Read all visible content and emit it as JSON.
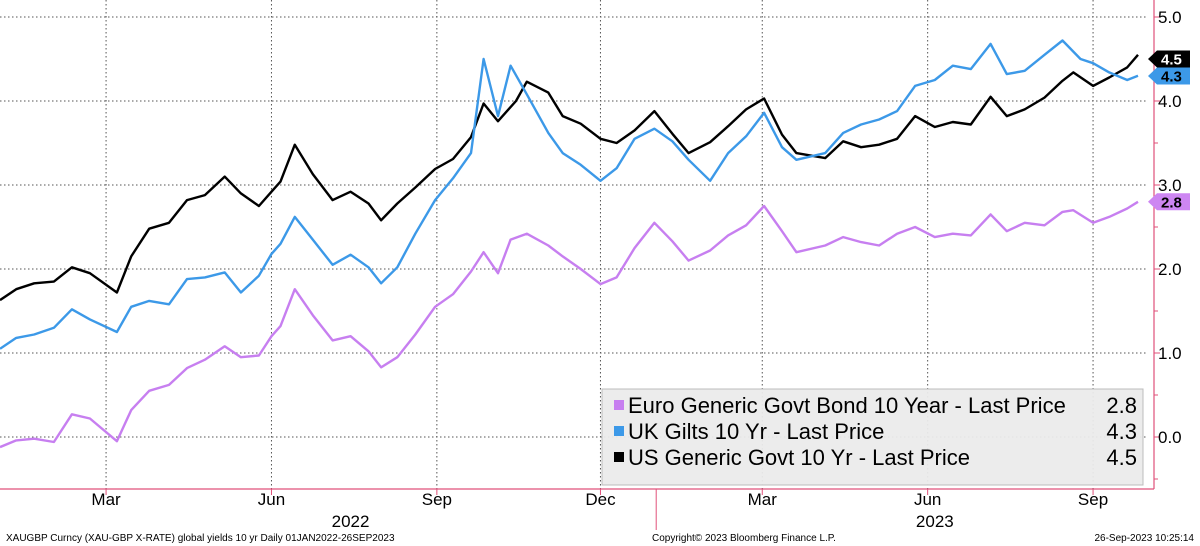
{
  "chart_data": {
    "type": "line",
    "xlim": [
      "2022-01-01",
      "2023-09-26"
    ],
    "ylim": [
      -0.6,
      5.0
    ],
    "y_ticks": [
      "5.0",
      "4.0",
      "3.0",
      "2.0",
      "1.0",
      "0.0"
    ],
    "x_ticks": [
      {
        "label": "Mar",
        "date": "2022-03-01"
      },
      {
        "label": "Jun",
        "date": "2022-06-01"
      },
      {
        "label": "Sep",
        "date": "2022-09-01"
      },
      {
        "label": "Dec",
        "date": "2022-12-01"
      },
      {
        "label": "Mar",
        "date": "2023-03-01"
      },
      {
        "label": "Jun",
        "date": "2023-06-01"
      },
      {
        "label": "Sep",
        "date": "2023-09-01"
      }
    ],
    "year_labels": [
      {
        "label": "2022",
        "date": "2022-07-15"
      },
      {
        "label": "2023",
        "date": "2023-06-05"
      }
    ],
    "grid": true,
    "legend_position": "bottom-right",
    "series": [
      {
        "name": "US Generic Govt 10 Yr - Last Price",
        "legend_value": "4.5",
        "badge": "4.5",
        "color": "#000000",
        "badge_color": "#000000",
        "badge_text_color": "#ffffff",
        "points": [
          [
            "2022-01-01",
            1.63
          ],
          [
            "2022-01-10",
            1.76
          ],
          [
            "2022-01-20",
            1.83
          ],
          [
            "2022-01-31",
            1.85
          ],
          [
            "2022-02-10",
            2.02
          ],
          [
            "2022-02-20",
            1.95
          ],
          [
            "2022-03-07",
            1.72
          ],
          [
            "2022-03-15",
            2.15
          ],
          [
            "2022-03-25",
            2.48
          ],
          [
            "2022-04-05",
            2.55
          ],
          [
            "2022-04-15",
            2.82
          ],
          [
            "2022-04-25",
            2.88
          ],
          [
            "2022-05-06",
            3.1
          ],
          [
            "2022-05-15",
            2.9
          ],
          [
            "2022-05-25",
            2.75
          ],
          [
            "2022-06-01",
            2.92
          ],
          [
            "2022-06-06",
            3.04
          ],
          [
            "2022-06-14",
            3.48
          ],
          [
            "2022-06-24",
            3.13
          ],
          [
            "2022-07-05",
            2.82
          ],
          [
            "2022-07-15",
            2.92
          ],
          [
            "2022-07-25",
            2.78
          ],
          [
            "2022-08-01",
            2.58
          ],
          [
            "2022-08-10",
            2.78
          ],
          [
            "2022-08-20",
            2.97
          ],
          [
            "2022-08-31",
            3.19
          ],
          [
            "2022-09-10",
            3.31
          ],
          [
            "2022-09-20",
            3.57
          ],
          [
            "2022-09-27",
            3.97
          ],
          [
            "2022-10-05",
            3.76
          ],
          [
            "2022-10-15",
            4.0
          ],
          [
            "2022-10-21",
            4.23
          ],
          [
            "2022-11-02",
            4.1
          ],
          [
            "2022-11-10",
            3.82
          ],
          [
            "2022-11-20",
            3.73
          ],
          [
            "2022-12-01",
            3.55
          ],
          [
            "2022-12-10",
            3.5
          ],
          [
            "2022-12-20",
            3.65
          ],
          [
            "2022-12-31",
            3.88
          ],
          [
            "2023-01-10",
            3.61
          ],
          [
            "2023-01-19",
            3.38
          ],
          [
            "2023-01-31",
            3.51
          ],
          [
            "2023-02-10",
            3.7
          ],
          [
            "2023-02-20",
            3.9
          ],
          [
            "2023-03-02",
            4.03
          ],
          [
            "2023-03-12",
            3.6
          ],
          [
            "2023-03-20",
            3.38
          ],
          [
            "2023-04-05",
            3.32
          ],
          [
            "2023-04-15",
            3.52
          ],
          [
            "2023-04-25",
            3.45
          ],
          [
            "2023-05-05",
            3.48
          ],
          [
            "2023-05-15",
            3.55
          ],
          [
            "2023-05-25",
            3.82
          ],
          [
            "2023-06-05",
            3.69
          ],
          [
            "2023-06-15",
            3.75
          ],
          [
            "2023-06-25",
            3.72
          ],
          [
            "2023-07-06",
            4.05
          ],
          [
            "2023-07-15",
            3.82
          ],
          [
            "2023-07-25",
            3.9
          ],
          [
            "2023-08-05",
            4.04
          ],
          [
            "2023-08-15",
            4.24
          ],
          [
            "2023-08-21",
            4.34
          ],
          [
            "2023-09-01",
            4.18
          ],
          [
            "2023-09-10",
            4.28
          ],
          [
            "2023-09-20",
            4.4
          ],
          [
            "2023-09-26",
            4.55
          ]
        ]
      },
      {
        "name": "UK Gilts 10 Yr - Last Price",
        "legend_value": "4.3",
        "badge": "4.3",
        "color": "#3c99e8",
        "badge_color": "#3c99e8",
        "badge_text_color": "#000000",
        "points": [
          [
            "2022-01-01",
            1.05
          ],
          [
            "2022-01-10",
            1.18
          ],
          [
            "2022-01-20",
            1.22
          ],
          [
            "2022-01-31",
            1.3
          ],
          [
            "2022-02-10",
            1.52
          ],
          [
            "2022-02-20",
            1.4
          ],
          [
            "2022-03-07",
            1.25
          ],
          [
            "2022-03-15",
            1.55
          ],
          [
            "2022-03-25",
            1.62
          ],
          [
            "2022-04-05",
            1.58
          ],
          [
            "2022-04-15",
            1.88
          ],
          [
            "2022-04-25",
            1.9
          ],
          [
            "2022-05-06",
            1.96
          ],
          [
            "2022-05-15",
            1.72
          ],
          [
            "2022-05-25",
            1.92
          ],
          [
            "2022-06-01",
            2.18
          ],
          [
            "2022-06-06",
            2.3
          ],
          [
            "2022-06-14",
            2.62
          ],
          [
            "2022-06-24",
            2.35
          ],
          [
            "2022-07-05",
            2.05
          ],
          [
            "2022-07-15",
            2.17
          ],
          [
            "2022-07-25",
            2.02
          ],
          [
            "2022-08-01",
            1.83
          ],
          [
            "2022-08-10",
            2.02
          ],
          [
            "2022-08-20",
            2.42
          ],
          [
            "2022-08-31",
            2.82
          ],
          [
            "2022-09-10",
            3.08
          ],
          [
            "2022-09-20",
            3.38
          ],
          [
            "2022-09-27",
            4.5
          ],
          [
            "2022-10-05",
            3.82
          ],
          [
            "2022-10-12",
            4.42
          ],
          [
            "2022-10-21",
            4.08
          ],
          [
            "2022-11-02",
            3.62
          ],
          [
            "2022-11-10",
            3.38
          ],
          [
            "2022-11-20",
            3.24
          ],
          [
            "2022-12-01",
            3.05
          ],
          [
            "2022-12-10",
            3.2
          ],
          [
            "2022-12-20",
            3.55
          ],
          [
            "2022-12-31",
            3.67
          ],
          [
            "2023-01-10",
            3.52
          ],
          [
            "2023-01-19",
            3.3
          ],
          [
            "2023-01-31",
            3.05
          ],
          [
            "2023-02-10",
            3.38
          ],
          [
            "2023-02-20",
            3.58
          ],
          [
            "2023-03-02",
            3.86
          ],
          [
            "2023-03-12",
            3.45
          ],
          [
            "2023-03-20",
            3.3
          ],
          [
            "2023-04-05",
            3.38
          ],
          [
            "2023-04-15",
            3.62
          ],
          [
            "2023-04-25",
            3.72
          ],
          [
            "2023-05-05",
            3.78
          ],
          [
            "2023-05-15",
            3.88
          ],
          [
            "2023-05-25",
            4.18
          ],
          [
            "2023-06-05",
            4.25
          ],
          [
            "2023-06-15",
            4.42
          ],
          [
            "2023-06-25",
            4.38
          ],
          [
            "2023-07-06",
            4.68
          ],
          [
            "2023-07-15",
            4.32
          ],
          [
            "2023-07-25",
            4.36
          ],
          [
            "2023-08-05",
            4.55
          ],
          [
            "2023-08-15",
            4.72
          ],
          [
            "2023-08-25",
            4.5
          ],
          [
            "2023-09-01",
            4.45
          ],
          [
            "2023-09-10",
            4.34
          ],
          [
            "2023-09-20",
            4.25
          ],
          [
            "2023-09-26",
            4.3
          ]
        ]
      },
      {
        "name": "Euro Generic Govt Bond 10 Year - Last Price",
        "legend_value": "2.8",
        "badge": "2.8",
        "color": "#c77ff0",
        "badge_color": "#cd86f2",
        "badge_text_color": "#000000",
        "points": [
          [
            "2022-01-01",
            -0.12
          ],
          [
            "2022-01-10",
            -0.04
          ],
          [
            "2022-01-20",
            -0.02
          ],
          [
            "2022-01-31",
            -0.06
          ],
          [
            "2022-02-10",
            0.27
          ],
          [
            "2022-02-20",
            0.22
          ],
          [
            "2022-03-07",
            -0.05
          ],
          [
            "2022-03-15",
            0.32
          ],
          [
            "2022-03-25",
            0.55
          ],
          [
            "2022-04-05",
            0.62
          ],
          [
            "2022-04-15",
            0.82
          ],
          [
            "2022-04-25",
            0.92
          ],
          [
            "2022-05-06",
            1.08
          ],
          [
            "2022-05-15",
            0.95
          ],
          [
            "2022-05-25",
            0.97
          ],
          [
            "2022-06-01",
            1.2
          ],
          [
            "2022-06-06",
            1.32
          ],
          [
            "2022-06-14",
            1.76
          ],
          [
            "2022-06-24",
            1.45
          ],
          [
            "2022-07-05",
            1.15
          ],
          [
            "2022-07-15",
            1.2
          ],
          [
            "2022-07-25",
            1.02
          ],
          [
            "2022-08-01",
            0.83
          ],
          [
            "2022-08-10",
            0.95
          ],
          [
            "2022-08-20",
            1.22
          ],
          [
            "2022-08-31",
            1.55
          ],
          [
            "2022-09-10",
            1.7
          ],
          [
            "2022-09-20",
            1.97
          ],
          [
            "2022-09-27",
            2.2
          ],
          [
            "2022-10-05",
            1.95
          ],
          [
            "2022-10-12",
            2.35
          ],
          [
            "2022-10-21",
            2.42
          ],
          [
            "2022-11-02",
            2.28
          ],
          [
            "2022-11-10",
            2.15
          ],
          [
            "2022-11-20",
            2.0
          ],
          [
            "2022-12-01",
            1.82
          ],
          [
            "2022-12-10",
            1.9
          ],
          [
            "2022-12-20",
            2.25
          ],
          [
            "2022-12-31",
            2.55
          ],
          [
            "2023-01-10",
            2.33
          ],
          [
            "2023-01-19",
            2.1
          ],
          [
            "2023-01-31",
            2.22
          ],
          [
            "2023-02-10",
            2.4
          ],
          [
            "2023-02-20",
            2.52
          ],
          [
            "2023-03-02",
            2.75
          ],
          [
            "2023-03-12",
            2.45
          ],
          [
            "2023-03-20",
            2.2
          ],
          [
            "2023-04-05",
            2.28
          ],
          [
            "2023-04-15",
            2.38
          ],
          [
            "2023-04-25",
            2.32
          ],
          [
            "2023-05-05",
            2.28
          ],
          [
            "2023-05-15",
            2.42
          ],
          [
            "2023-05-25",
            2.5
          ],
          [
            "2023-06-05",
            2.38
          ],
          [
            "2023-06-15",
            2.42
          ],
          [
            "2023-06-25",
            2.4
          ],
          [
            "2023-07-06",
            2.65
          ],
          [
            "2023-07-15",
            2.45
          ],
          [
            "2023-07-25",
            2.55
          ],
          [
            "2023-08-05",
            2.52
          ],
          [
            "2023-08-15",
            2.68
          ],
          [
            "2023-08-21",
            2.7
          ],
          [
            "2023-09-01",
            2.55
          ],
          [
            "2023-09-10",
            2.62
          ],
          [
            "2023-09-20",
            2.72
          ],
          [
            "2023-09-26",
            2.8
          ]
        ]
      }
    ],
    "legend_order": [
      2,
      1,
      0
    ]
  },
  "footer": {
    "left": "XAUGBP Curncy (XAU-GBP X-RATE) global yields 10 yr  Daily 01JAN2022-26SEP2023",
    "center": "Copyright© 2023 Bloomberg Finance L.P.",
    "right": "26-Sep-2023 10:25:14"
  }
}
